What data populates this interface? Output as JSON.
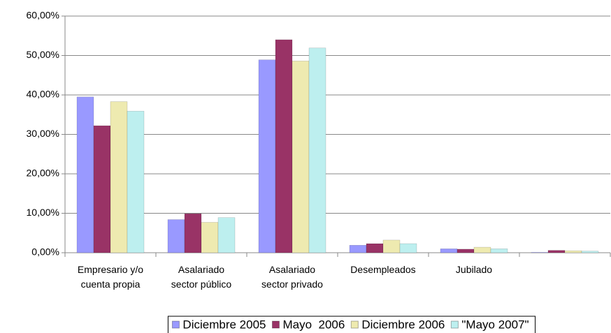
{
  "chart_data": {
    "type": "bar",
    "categories": [
      "Empresario y/o\ncuenta propia",
      "Asalariado\nsector público",
      "Asalariado\nsector privado",
      "Desempleados",
      "Jubilado",
      null
    ],
    "series": [
      {
        "name": "Diciembre 2005",
        "color": "#9999ff",
        "values": [
          39.5,
          8.4,
          48.9,
          1.9,
          1.0,
          0.1
        ]
      },
      {
        "name": "Mayo  2006",
        "color": "#993366",
        "values": [
          32.2,
          9.9,
          54.0,
          2.3,
          0.9,
          0.6
        ]
      },
      {
        "name": "Diciembre 2006",
        "color": "#eeeab0",
        "values": [
          38.3,
          7.7,
          48.6,
          3.2,
          1.4,
          0.5
        ]
      },
      {
        "name": "\"Mayo 2007\"",
        "color": "#bdefef",
        "values": [
          35.9,
          8.9,
          51.9,
          2.3,
          1.0,
          0.4
        ]
      }
    ],
    "ylim": [
      0,
      60
    ],
    "yticks": [
      {
        "value": 0,
        "label": "0,00%"
      },
      {
        "value": 10,
        "label": "10,00%"
      },
      {
        "value": 20,
        "label": "20,00%"
      },
      {
        "value": 30,
        "label": "30,00%"
      },
      {
        "value": 40,
        "label": "40,00%"
      },
      {
        "value": 50,
        "label": "50,00%"
      },
      {
        "value": 60,
        "label": "60,00%"
      }
    ],
    "grid": true,
    "legend": "bottom"
  }
}
